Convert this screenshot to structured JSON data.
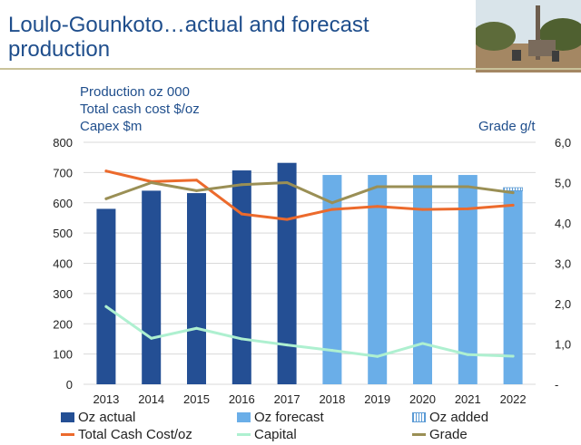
{
  "title": "Loulo-Gounkoto…actual and forecast production",
  "y_axis_labels": {
    "left": [
      "Production oz 000",
      "Total cash cost $/oz",
      "Capex $m"
    ],
    "right": "Grade g/t"
  },
  "legend": {
    "oz_actual": "Oz actual",
    "oz_forecast": "Oz forecast",
    "oz_added": "Oz added",
    "total_cash_cost": "Total Cash Cost/oz",
    "capital": "Capital",
    "grade": "Grade"
  },
  "colors": {
    "title": "#1f4e8c",
    "oz_actual": "#244f94",
    "oz_forecast": "#6aaee8",
    "total_cash_cost": "#ec6a2c",
    "capital": "#aef0d0",
    "grade": "#9a8f55",
    "rule": "#c9c29a"
  },
  "chart_data": {
    "type": "bar",
    "categories": [
      "2013",
      "2014",
      "2015",
      "2016",
      "2017",
      "2018",
      "2019",
      "2020",
      "2021",
      "2022"
    ],
    "left_axis": {
      "ylim": [
        0,
        800
      ],
      "ticks": [
        "0",
        "100",
        "200",
        "300",
        "400",
        "500",
        "600",
        "700",
        "800"
      ]
    },
    "right_axis": {
      "ylim": [
        0,
        6
      ],
      "ticks": [
        "-",
        "1,0",
        "2,0",
        "3,0",
        "4,0",
        "5,0",
        "6,0"
      ]
    },
    "grid": true,
    "legend_position": "bottom",
    "series": [
      {
        "name": "Oz actual",
        "kind": "bar",
        "axis": "left",
        "values": [
          580,
          640,
          632,
          707,
          732,
          null,
          null,
          null,
          null,
          null
        ]
      },
      {
        "name": "Oz forecast",
        "kind": "bar",
        "axis": "left",
        "values": [
          null,
          null,
          null,
          null,
          null,
          692,
          692,
          692,
          692,
          640
        ]
      },
      {
        "name": "Oz added",
        "kind": "bar-hatched",
        "axis": "left",
        "values": [
          null,
          null,
          null,
          null,
          null,
          null,
          null,
          null,
          null,
          10
        ]
      },
      {
        "name": "Total Cash Cost/oz",
        "kind": "line",
        "axis": "left",
        "values": [
          705,
          670,
          675,
          563,
          545,
          578,
          588,
          578,
          580,
          592
        ]
      },
      {
        "name": "Capital",
        "kind": "line",
        "axis": "left",
        "values": [
          257,
          152,
          185,
          150,
          130,
          112,
          92,
          135,
          98,
          93
        ]
      },
      {
        "name": "Grade",
        "kind": "line",
        "axis": "right",
        "values": [
          4.6,
          5.0,
          4.8,
          4.95,
          5.0,
          4.5,
          4.9,
          4.9,
          4.9,
          4.75
        ]
      }
    ]
  }
}
